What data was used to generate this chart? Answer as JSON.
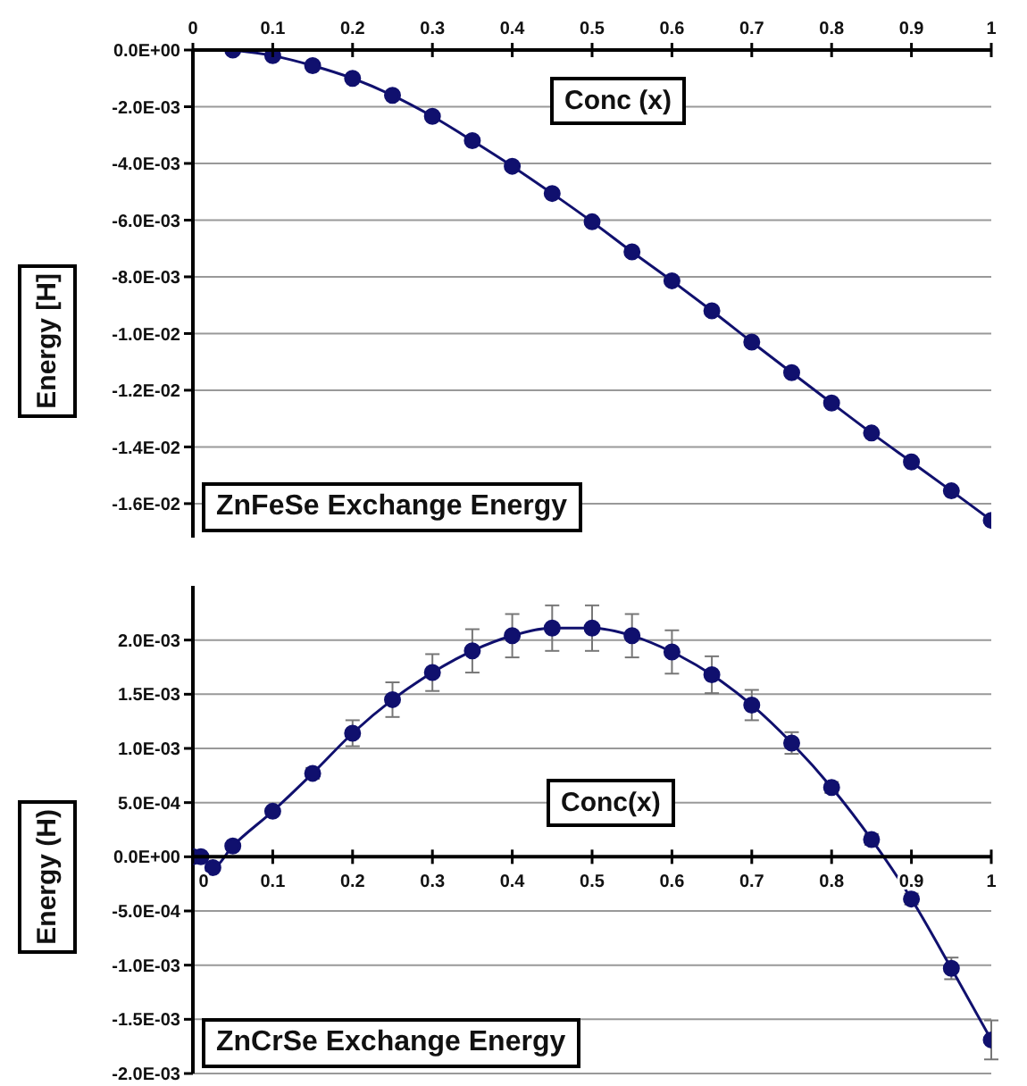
{
  "chart_data": [
    {
      "type": "line",
      "title": "ZnFeSe Exchange Energy",
      "xlabel": "Conc (x)",
      "ylabel": "Energy [H]",
      "grid": "y",
      "marker": "circle",
      "line_style": "solid",
      "x": [
        0.05,
        0.1,
        0.15,
        0.2,
        0.25,
        0.3,
        0.35,
        0.4,
        0.45,
        0.5,
        0.55,
        0.6,
        0.65,
        0.7,
        0.75,
        0.8,
        0.85,
        0.9,
        0.95,
        1
      ],
      "series": [
        {
          "color": "#10106e",
          "values": [
            0,
            -0.0002,
            -0.00055,
            -0.001,
            -0.0016,
            -0.00234,
            -0.0032,
            -0.0041,
            -0.00506,
            -0.00606,
            -0.00712,
            -0.00814,
            -0.0092,
            -0.0103,
            -0.01138,
            -0.01245,
            -0.01351,
            -0.01453,
            -0.01555,
            -0.01659
          ]
        }
      ],
      "xlim": [
        0,
        1
      ],
      "xticks": [
        0,
        0.1,
        0.2,
        0.3,
        0.4,
        0.5,
        0.6,
        0.7,
        0.8,
        0.9,
        1
      ],
      "ylim": [
        -0.0172,
        0
      ],
      "yticks": [
        {
          "value": 0,
          "label": "0.0E+00"
        },
        {
          "value": -0.002,
          "label": "-2.0E-03"
        },
        {
          "value": -0.004,
          "label": "-4.0E-03"
        },
        {
          "value": -0.006,
          "label": "-6.0E-03"
        },
        {
          "value": -0.008,
          "label": "-8.0E-03"
        },
        {
          "value": -0.01,
          "label": "-1.0E-02"
        },
        {
          "value": -0.012,
          "label": "-1.2E-02"
        },
        {
          "value": -0.014,
          "label": "-1.4E-02"
        },
        {
          "value": -0.016,
          "label": "-1.6E-02"
        }
      ]
    },
    {
      "type": "line",
      "title": "ZnCrSe Exchange Energy",
      "xlabel": "Conc(x)",
      "ylabel": "Energy (H)",
      "grid": "y",
      "marker": "circle",
      "line_style": "solid",
      "x": [
        0,
        0.01,
        0.025,
        0.05,
        0.1,
        0.15,
        0.2,
        0.25,
        0.3,
        0.35,
        0.4,
        0.45,
        0.5,
        0.55,
        0.6,
        0.65,
        0.7,
        0.75,
        0.8,
        0.85,
        0.9,
        0.95,
        1
      ],
      "series": [
        {
          "color": "#10106e",
          "values": [
            0,
            0,
            -0.0001,
            0.0001,
            0.00042,
            0.00077,
            0.00114,
            0.00145,
            0.0017,
            0.0019,
            0.00204,
            0.00211,
            0.00211,
            0.00204,
            0.00189,
            0.00168,
            0.0014,
            0.00105,
            0.00064,
            0.00016,
            -0.00039,
            -0.00103,
            -0.00169
          ],
          "errors": [
            null,
            null,
            null,
            null,
            null,
            5e-05,
            0.00012,
            0.00016,
            0.00017,
            0.0002,
            0.0002,
            0.00021,
            0.00021,
            0.0002,
            0.0002,
            0.00017,
            0.00014,
            0.0001,
            5e-05,
            5e-05,
            5e-05,
            0.0001,
            0.00018
          ]
        }
      ],
      "xlim": [
        0,
        1
      ],
      "xticks": [
        0,
        0.1,
        0.2,
        0.3,
        0.4,
        0.5,
        0.6,
        0.7,
        0.8,
        0.9,
        1
      ],
      "ylim": [
        -0.002,
        0.0025
      ],
      "yticks": [
        {
          "value": -0.002,
          "label": "-2.0E-03"
        },
        {
          "value": -0.0015,
          "label": "-1.5E-03"
        },
        {
          "value": -0.001,
          "label": "-1.0E-03"
        },
        {
          "value": -0.0005,
          "label": "-5.0E-04"
        },
        {
          "value": 0,
          "label": "0.0E+00"
        },
        {
          "value": 0.0005,
          "label": "5.0E-04"
        },
        {
          "value": 0.001,
          "label": "1.0E-03"
        },
        {
          "value": 0.0015,
          "label": "1.5E-03"
        },
        {
          "value": 0.002,
          "label": "2.0E-03"
        }
      ]
    }
  ]
}
